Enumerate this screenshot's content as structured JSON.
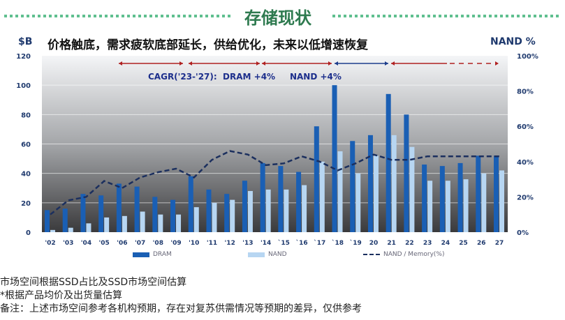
{
  "header": {
    "title": "存储现状"
  },
  "subtitle": "价格触底，需求疲软底部延长，供给优化，未来以低增速恢复",
  "colors": {
    "dram": "#1a5fb4",
    "nand": "#b7d6f2",
    "line": "#1b2f5e",
    "arrow_red": "#b02020",
    "arrow_blue": "#1d3d8c",
    "header_green": "#2e7a4f"
  },
  "chart_data": {
    "type": "bar",
    "left_unit": "$B",
    "right_unit": "NAND %",
    "annotation": "CAGR('23-'27):  DRAM +4%     NAND +4%",
    "ylim": [
      0,
      120
    ],
    "y_ticks": [
      "0",
      "20",
      "40",
      "60",
      "80",
      "100",
      "120"
    ],
    "y2lim": [
      0,
      100
    ],
    "y2_ticks": [
      "0%",
      "20%",
      "40%",
      "60%",
      "80%",
      "100%"
    ],
    "categories": [
      "'02",
      "'03",
      "'04",
      "'05",
      "'06",
      "'07",
      "'08",
      "'09",
      "'10",
      "'11",
      "'12",
      "'13",
      "'14",
      "`15",
      "`16",
      "`17",
      "`18",
      "`19",
      "20",
      "21",
      "22",
      "23",
      "24",
      "25",
      "26",
      "27"
    ],
    "series": [
      {
        "name": "DRAM",
        "type": "bar",
        "values": [
          15,
          16,
          26,
          25,
          33,
          31,
          24,
          22,
          38,
          29,
          26,
          35,
          47,
          45,
          41,
          72,
          100,
          62,
          66,
          94,
          80,
          46,
          45,
          47,
          52,
          52
        ]
      },
      {
        "name": "NAND",
        "type": "bar",
        "values": [
          1.5,
          3,
          6,
          10,
          11,
          14,
          12,
          12,
          17,
          20,
          22,
          28,
          29,
          29,
          32,
          48,
          55,
          40,
          52,
          66,
          58,
          35,
          35,
          36,
          40,
          42
        ]
      },
      {
        "name": "NAND / Memory(%)",
        "type": "line",
        "axis": "right",
        "values": [
          10,
          18,
          20,
          29,
          25,
          31,
          34,
          36,
          31,
          41,
          46,
          44,
          38,
          39,
          43,
          40,
          35,
          39,
          44,
          41,
          41,
          43,
          43,
          43,
          43,
          43
        ]
      }
    ],
    "grid": true,
    "legend": "bottom"
  },
  "notes": [
    "市场空间根据SSD占比及SSD市场空间估算",
    "*根据产品均价及出货量估算",
    "备注：上述市场空间参考各机构预期，存在对复苏供需情况等预期的差异，仅供参考"
  ]
}
